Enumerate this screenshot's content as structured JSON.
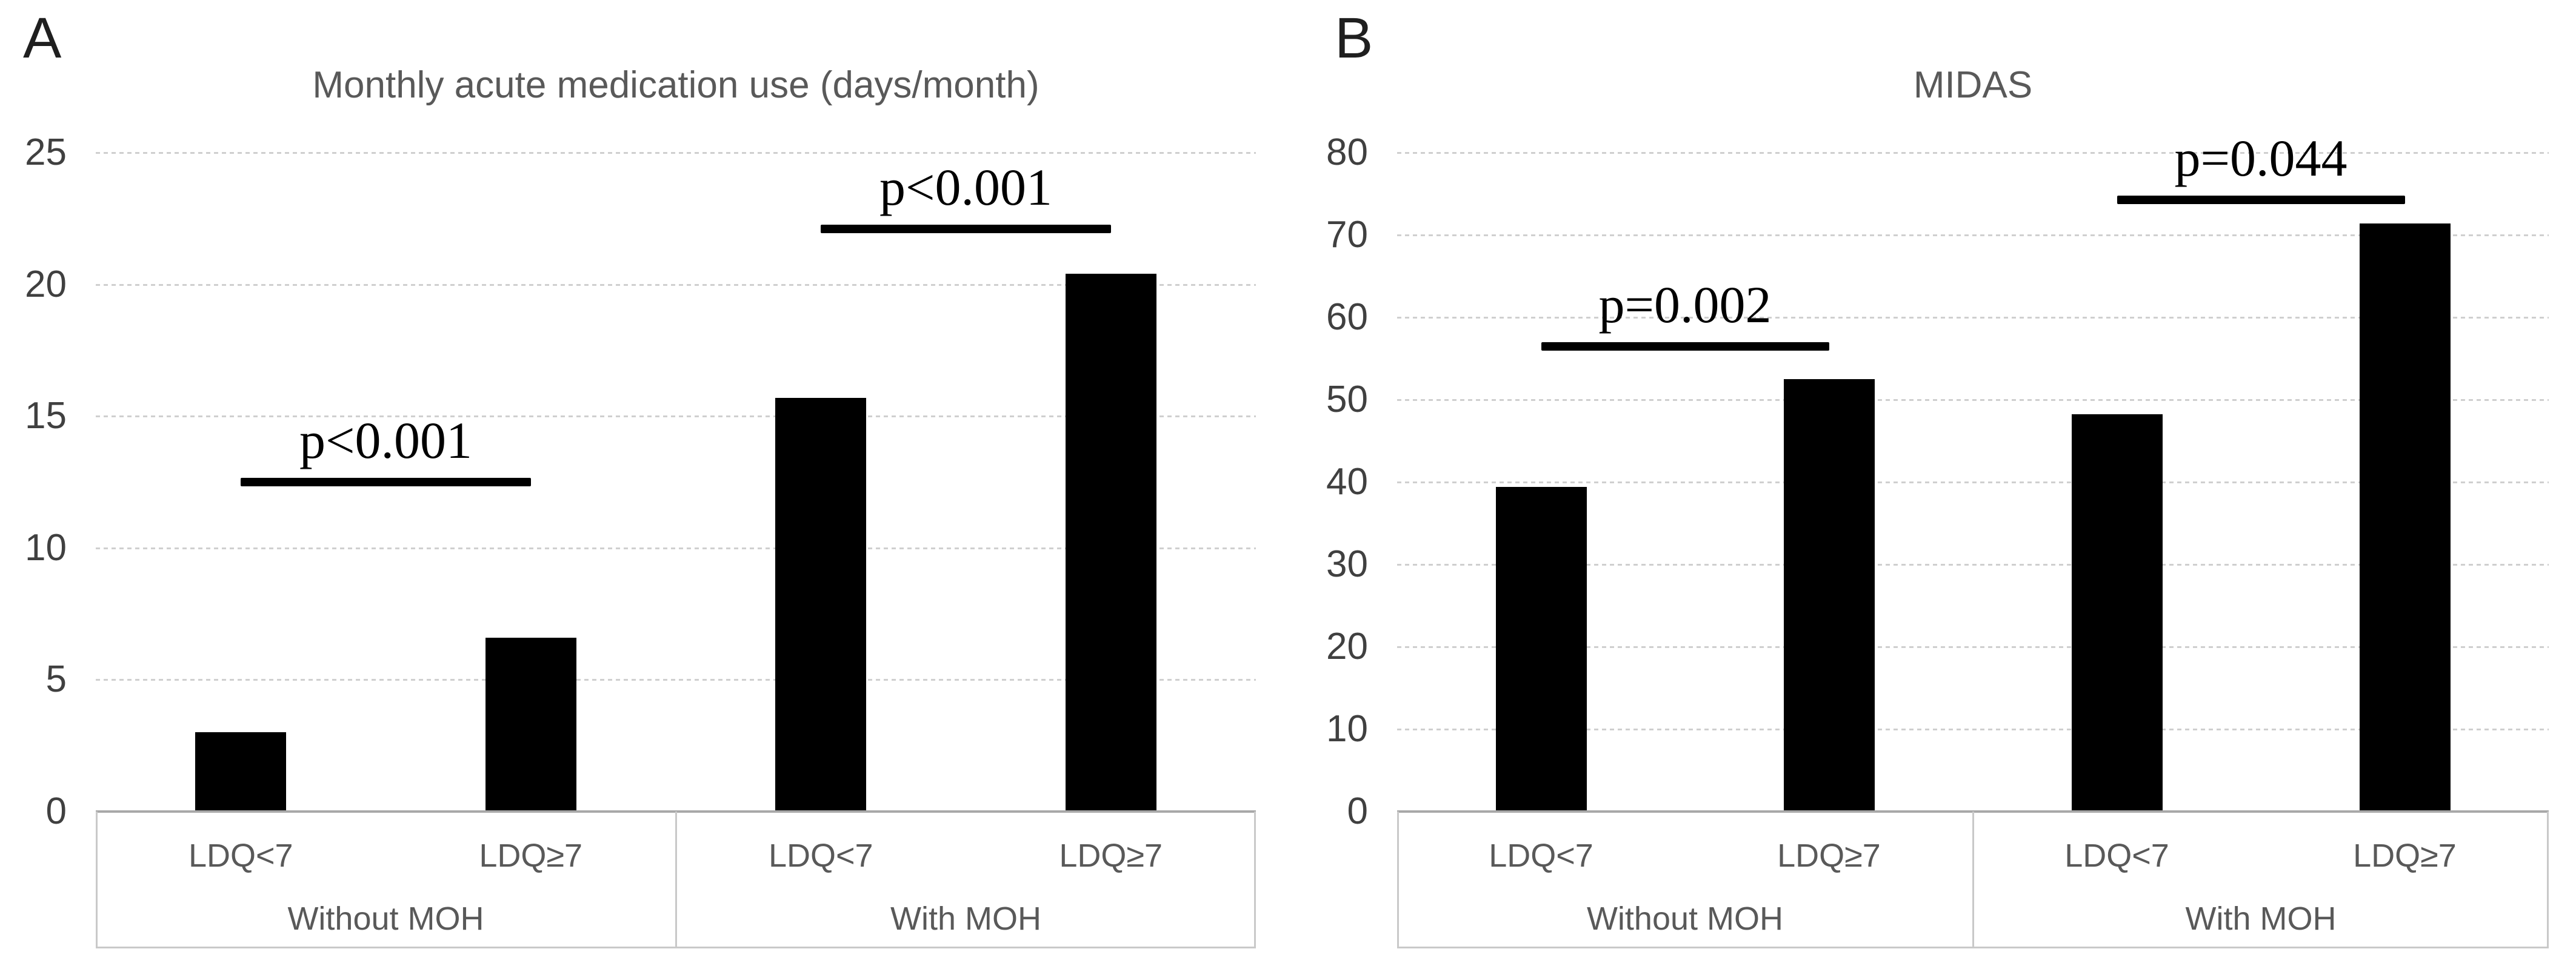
{
  "figure_type": "two-panel bar chart figure",
  "colors": {
    "background": "#ffffff",
    "bar": "#000000",
    "gridline": "#cfcfcf",
    "axis_line": "#a8a8a8",
    "box_border": "#c9c9c9",
    "title_text": "#595959",
    "tick_text": "#404040",
    "category_text": "#595959",
    "annotation_text": "#000000",
    "panel_label_text": "#1f1f1f"
  },
  "chart_data": [
    {
      "type": "bar",
      "panel_label": "A",
      "title": "Monthly acute medication use (days/month)",
      "categories": [
        "LDQ<7",
        "LDQ≥7",
        "LDQ<7",
        "LDQ≥7"
      ],
      "group_labels": [
        "Without MOH",
        "With MOH"
      ],
      "values": [
        3.0,
        6.6,
        15.7,
        20.4
      ],
      "ylim": [
        0,
        25
      ],
      "yticks": [
        0,
        5,
        10,
        15,
        20,
        25
      ],
      "grid": "horizontal-dotted",
      "legend": "none",
      "annotations": [
        {
          "text": "p<0.001",
          "between_bars": [
            0,
            1
          ],
          "line_y": 12.5
        },
        {
          "text": "p<0.001",
          "between_bars": [
            2,
            3
          ],
          "line_y": 22.1
        }
      ]
    },
    {
      "type": "bar",
      "panel_label": "B",
      "title": "MIDAS",
      "categories": [
        "LDQ<7",
        "LDQ≥7",
        "LDQ<7",
        "LDQ≥7"
      ],
      "group_labels": [
        "Without MOH",
        "With MOH"
      ],
      "values": [
        39.4,
        52.5,
        48.2,
        71.4
      ],
      "ylim": [
        0,
        80
      ],
      "yticks": [
        0,
        10,
        20,
        30,
        40,
        50,
        60,
        70,
        80
      ],
      "grid": "horizontal-dotted",
      "legend": "none",
      "annotations": [
        {
          "text": "p=0.002",
          "between_bars": [
            0,
            1
          ],
          "line_y": 56.5
        },
        {
          "text": "p=0.044",
          "between_bars": [
            2,
            3
          ],
          "line_y": 74.3
        }
      ]
    }
  ]
}
